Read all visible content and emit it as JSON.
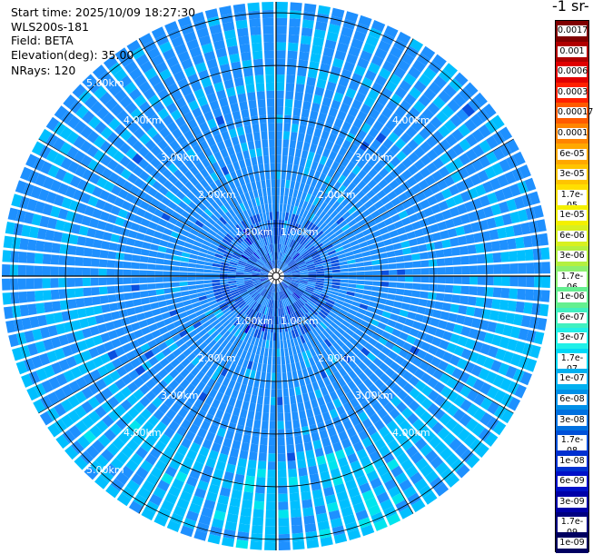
{
  "info": {
    "start_time": "Start time: 2025/10/09 18:27:30",
    "instrument": "WLS200s-181",
    "field": "Field: BETA",
    "elevation": "Elevation(deg): 35.00",
    "nrays": "NRays: 120"
  },
  "colorbar": {
    "title": "-1 sr-",
    "labels": [
      "0.0017",
      "0.001",
      "0.0006",
      "0.0003",
      "0.00017",
      "0.0001",
      "6e-05",
      "3e-05",
      "1.7e-05",
      "1e-05",
      "6e-06",
      "3e-06",
      "1.7e-06",
      "1e-06",
      "6e-07",
      "3e-07",
      "1.7e-07",
      "1e-07",
      "6e-08",
      "3e-08",
      "1.7e-08",
      "1e-08",
      "6e-09",
      "3e-09",
      "1.7e-09",
      "1e-09"
    ],
    "colors": [
      "#7f0000",
      "#b00000",
      "#e00000",
      "#ff2000",
      "#ff5a00",
      "#ff8400",
      "#ffa800",
      "#ffc400",
      "#ffdf00",
      "#f4f000",
      "#d8f020",
      "#b4f040",
      "#8cf070",
      "#64ef90",
      "#40f0c0",
      "#20f0e8",
      "#00d8f8",
      "#00b0f0",
      "#0090e8",
      "#0070e0",
      "#0050d8",
      "#0030d0",
      "#0010c8",
      "#0000a8",
      "#000080",
      "#000060"
    ]
  },
  "ring_labels": [
    "1.00km",
    "2.00km",
    "3.00km",
    "4.00km",
    "5.00km"
  ],
  "chart_data": {
    "type": "heatmap",
    "field": "BETA",
    "elevation_deg": 35.0,
    "n_rays": 120,
    "range_rings_km": [
      1,
      2,
      3,
      4,
      5
    ],
    "max_range_km": 5.0,
    "colormap_stops": [
      "#00007f",
      "#0000d0",
      "#0a50e0",
      "#1e90ff",
      "#00bfff",
      "#00e5ee",
      "#40f0c0",
      "#8cf070"
    ],
    "value_range": [
      1e-09,
      0.0017
    ]
  }
}
